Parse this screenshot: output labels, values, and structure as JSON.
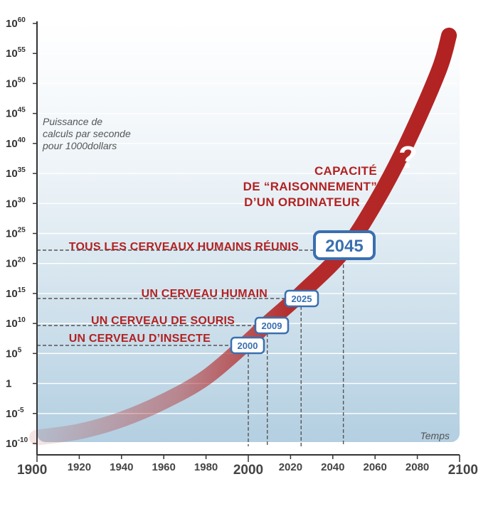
{
  "chart_data": {
    "type": "line",
    "ylabel": "Puissance de calculs par seconde pour 1000 dollars",
    "xlabel": "Temps",
    "x_scale": "linear",
    "y_scale": "log",
    "xlim": [
      1900,
      2100
    ],
    "ylim_exponent": [
      -10,
      60
    ],
    "x_ticks": [
      {
        "value": 1900,
        "label": "1900",
        "major": true
      },
      {
        "value": 1920,
        "label": "1920",
        "major": false
      },
      {
        "value": 1940,
        "label": "1940",
        "major": false
      },
      {
        "value": 1960,
        "label": "1960",
        "major": false
      },
      {
        "value": 1980,
        "label": "1980",
        "major": false
      },
      {
        "value": 2000,
        "label": "2000",
        "major": true
      },
      {
        "value": 2020,
        "label": "2020",
        "major": false
      },
      {
        "value": 2040,
        "label": "2040",
        "major": false
      },
      {
        "value": 2060,
        "label": "2060",
        "major": false
      },
      {
        "value": 2080,
        "label": "2080",
        "major": false
      },
      {
        "value": 2100,
        "label": "2100",
        "major": true
      }
    ],
    "y_ticks": [
      {
        "exp": 60,
        "base": "10",
        "sup": "60"
      },
      {
        "exp": 55,
        "base": "10",
        "sup": "55"
      },
      {
        "exp": 50,
        "base": "10",
        "sup": "50"
      },
      {
        "exp": 45,
        "base": "10",
        "sup": "45"
      },
      {
        "exp": 40,
        "base": "10",
        "sup": "40"
      },
      {
        "exp": 35,
        "base": "10",
        "sup": "35"
      },
      {
        "exp": 30,
        "base": "10",
        "sup": "30"
      },
      {
        "exp": 25,
        "base": "10",
        "sup": "25"
      },
      {
        "exp": 20,
        "base": "10",
        "sup": "20"
      },
      {
        "exp": 15,
        "base": "10",
        "sup": "15"
      },
      {
        "exp": 10,
        "base": "10",
        "sup": "10"
      },
      {
        "exp": 5,
        "base": "10",
        "sup": "5"
      },
      {
        "exp": 0,
        "base": "1",
        "sup": ""
      },
      {
        "exp": -5,
        "base": "10",
        "sup": "-5"
      },
      {
        "exp": -10,
        "base": "10",
        "sup": "-10"
      }
    ],
    "series": [
      {
        "name": "CAPACITÉ DE “RAISONNEMENT” D’UN ORDINATEUR",
        "color": "#b22222",
        "points": [
          {
            "x": 1900,
            "y_exp": -9
          },
          {
            "x": 1920,
            "y_exp": -8
          },
          {
            "x": 1940,
            "y_exp": -6
          },
          {
            "x": 1960,
            "y_exp": -3
          },
          {
            "x": 1980,
            "y_exp": 1
          },
          {
            "x": 2000,
            "y_exp": 7
          },
          {
            "x": 2009,
            "y_exp": 10
          },
          {
            "x": 2025,
            "y_exp": 15
          },
          {
            "x": 2045,
            "y_exp": 22
          },
          {
            "x": 2060,
            "y_exp": 30
          },
          {
            "x": 2075,
            "y_exp": 40
          },
          {
            "x": 2090,
            "y_exp": 52
          },
          {
            "x": 2095,
            "y_exp": 58
          }
        ]
      }
    ],
    "curve_label": [
      "CAPACITÉ",
      "DE “RAISONNEMENT”",
      "D’UN ORDINATEUR"
    ],
    "question_mark": "?",
    "milestones": [
      {
        "label": "TOUS LES CERVEAUX HUMAINS RÉUNIS",
        "year": 2045,
        "year_label": "2045",
        "y_exp": 23,
        "highlight": true
      },
      {
        "label": "UN CERVEAU HUMAIN",
        "year": 2025,
        "year_label": "2025",
        "y_exp": 15,
        "highlight": false
      },
      {
        "label": "UN CERVEAU DE SOURIS",
        "year": 2009,
        "year_label": "2009",
        "y_exp": 11,
        "highlight": false
      },
      {
        "label": "UN CERVEAU D’INSECTE",
        "year": 2000,
        "year_label": "2000",
        "y_exp": 8,
        "highlight": false
      }
    ],
    "colors": {
      "curve": "#b22222",
      "milestone_text": "#b22222",
      "year_box_border": "#3a6fb0",
      "background_top": "#ffffff",
      "background_bottom": "#b8d2e3",
      "gridline": "#ffffff"
    },
    "grid": true
  },
  "ylabel_lines": [
    "Puissance de",
    "calculs par seconde",
    "pour 1000dollars"
  ]
}
